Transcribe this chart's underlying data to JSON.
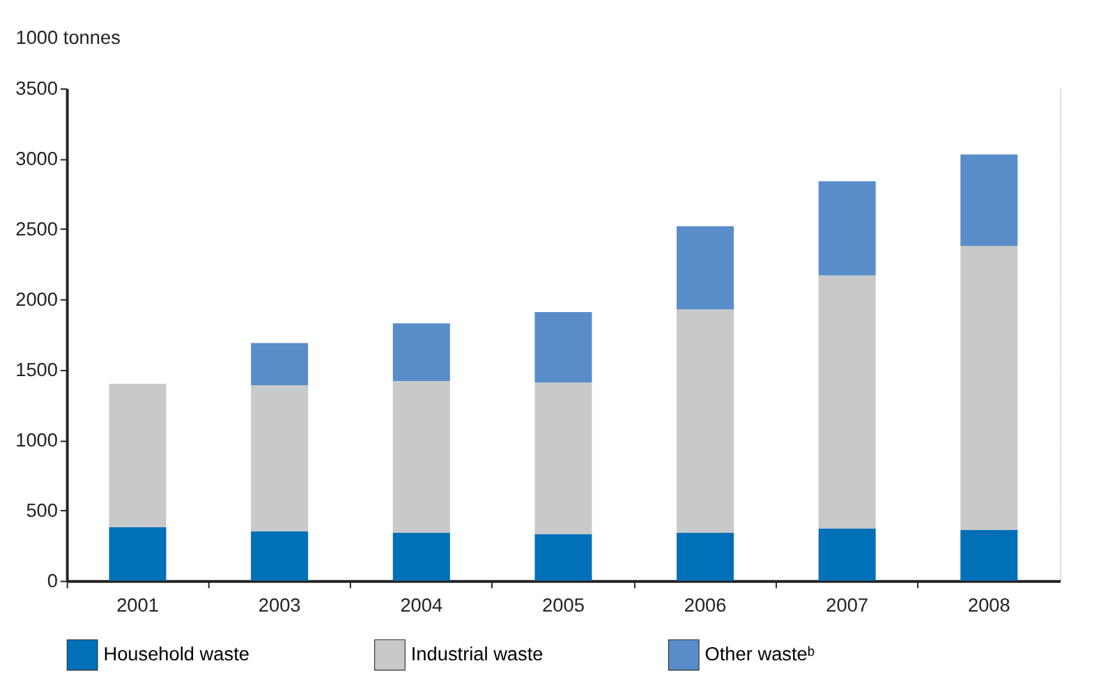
{
  "chart_data": {
    "type": "bar",
    "stacked": true,
    "ylabel": "1000 tonnes",
    "categories": [
      "2001",
      "2003",
      "2004",
      "2005",
      "2006",
      "2007",
      "2008"
    ],
    "series": [
      {
        "name": "Household waste",
        "color": "#0070b8",
        "values": [
          380,
          350,
          340,
          330,
          340,
          370,
          360
        ]
      },
      {
        "name": "Industrial waste",
        "color": "#c8c9cb",
        "values": [
          1020,
          1040,
          1080,
          1080,
          1590,
          1800,
          2020
        ]
      },
      {
        "name": "Other wasteᵇ",
        "color": "#588dc9",
        "values": [
          null,
          300,
          410,
          500,
          590,
          670,
          650
        ]
      }
    ],
    "ylim": [
      0,
      3500
    ],
    "yticks": [
      0,
      500,
      1000,
      1500,
      2000,
      2500,
      3000,
      3500
    ],
    "grid": true,
    "legend": "bottom"
  }
}
